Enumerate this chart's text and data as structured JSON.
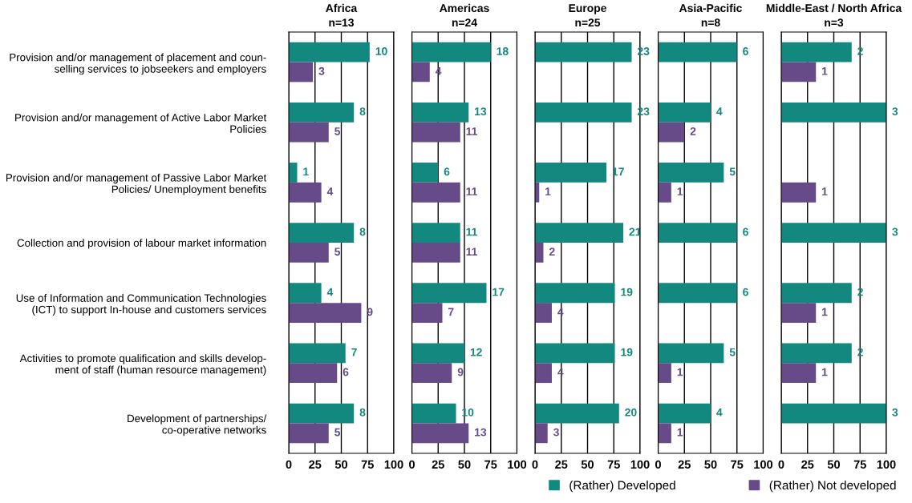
{
  "chart_data": [
    {
      "type": "bar",
      "orientation": "horizontal",
      "title": "Africa",
      "subtitle": "n=13",
      "categories": [
        "Provision and/or management of placement and coun-\nselling services to jobseekers and employers",
        "Provision and/or management of Active Labor Market\nPolicies",
        "Provision and/or management of Passive Labor Market\nPolicies/ Unemployment benefits",
        "Collection and provision of labour market information",
        "Use of Information and Communication Technologies\n(ICT) to support In-house and customers services",
        "Activities to promote qualification and skills develop-\nment of staff (human resource management)",
        "Development of partnerships/\nco-operative networks"
      ],
      "xlim": [
        0,
        100
      ],
      "xticks": [
        0,
        25,
        50,
        75,
        100
      ],
      "grid": "x",
      "series": [
        {
          "color": "#13887f",
          "values": [
            77,
            62,
            8,
            62,
            31,
            54,
            62
          ]
        },
        {
          "color": "#674a88",
          "values": [
            23,
            38,
            31,
            38,
            69,
            46,
            38
          ]
        }
      ],
      "annotations": [
        {
          "text": "10",
          "x": 77,
          "y": "Provision and/or management of placement and coun-\nselling services to jobseekers and employers"
        },
        {
          "text": "3",
          "x": 23,
          "y": "Provision and/or management of placement and coun-\nselling services to jobseekers and employers"
        },
        {
          "text": "8",
          "x": 62,
          "y": "Provision and/or management of Active Labor Market\nPolicies"
        },
        {
          "text": "5",
          "x": 38,
          "y": "Provision and/or management of Active Labor Market\nPolicies"
        },
        {
          "text": "1",
          "x": 8,
          "y": "Provision and/or management of Passive Labor Market\nPolicies/ Unemployment benefits"
        },
        {
          "text": "4",
          "x": 31,
          "y": "Provision and/or management of Passive Labor Market\nPolicies/ Unemployment benefits"
        },
        {
          "text": "8",
          "x": 62,
          "y": "Collection and provision of labour market information"
        },
        {
          "text": "5",
          "x": 38,
          "y": "Collection and provision of labour market information"
        },
        {
          "text": "4",
          "x": 31,
          "y": "Use of Information and Communication Technologies\n(ICT) to support In-house and customers services"
        },
        {
          "text": "9",
          "x": 69,
          "y": "Use of Information and Communication Technologies\n(ICT) to support In-house and customers services"
        },
        {
          "text": "7",
          "x": 54,
          "y": "Activities to promote qualification and skills develop-\nment of staff (human resource management)"
        },
        {
          "text": "6",
          "x": 46,
          "y": "Activities to promote qualification and skills develop-\nment of staff (human resource management)"
        },
        {
          "text": "8",
          "x": 62,
          "y": "Development of partnerships/\nco-operative networks"
        },
        {
          "text": "5",
          "x": 38,
          "y": "Development of partnerships/\nco-operative networks"
        }
      ]
    },
    {
      "type": "bar",
      "orientation": "horizontal",
      "title": "Americas",
      "subtitle": "n=24",
      "categories": [
        "Provision and/or management of placement and coun-\nselling services to jobseekers and employers",
        "Provision and/or management of Active Labor Market\nPolicies",
        "Provision and/or management of Passive Labor Market\nPolicies/ Unemployment benefits",
        "Collection and provision of labour market information",
        "Use of Information and Communication Technologies\n(ICT) to support In-house and customers services",
        "Activities to promote qualification and skills develop-\nment of staff (human resource management)",
        "Development of partnerships/\nco-operative networks"
      ],
      "xlim": [
        0,
        100
      ],
      "xticks": [
        0,
        25,
        50,
        75,
        100
      ],
      "grid": "x",
      "tick_labels": "x",
      "series": [
        {
          "color": "#13887f",
          "values": [
            75,
            54,
            25,
            46,
            71,
            50,
            42
          ]
        },
        {
          "color": "#674a88",
          "values": [
            17,
            46,
            46,
            46,
            29,
            38,
            54
          ]
        }
      ],
      "annotations": [
        {
          "text": "18",
          "x": 75,
          "y": "Provision and/or management of placement and coun-\nselling services to jobseekers and employers"
        },
        {
          "text": "4",
          "x": 17,
          "y": "Provision and/or management of placement and coun-\nselling services to jobseekers and employers"
        },
        {
          "text": "13",
          "x": 54,
          "y": "Provision and/or management of Active Labor Market\nPolicies"
        },
        {
          "text": "11",
          "x": 46,
          "y": "Provision and/or management of Active Labor Market\nPolicies"
        },
        {
          "text": "6",
          "x": 25,
          "y": "Provision and/or management of Passive Labor Market\nPolicies/ Unemployment benefits"
        },
        {
          "text": "11",
          "x": 46,
          "y": "Provision and/or management of Passive Labor Market\nPolicies/ Unemployment benefits"
        },
        {
          "text": "11",
          "x": 46,
          "y": "Collection and provision of labour market information"
        },
        {
          "text": "11",
          "x": 46,
          "y": "Collection and provision of labour market information"
        },
        {
          "text": "17",
          "x": 71,
          "y": "Use of Information and Communication Technologies\n(ICT) to support In-house and customers services"
        },
        {
          "text": "7",
          "x": 29,
          "y": "Use of Information and Communication Technologies\n(ICT) to support In-house and customers services"
        },
        {
          "text": "12",
          "x": 50,
          "y": "Activities to promote qualification and skills develop-\nment of staff (human resource management)"
        },
        {
          "text": "9",
          "x": 38,
          "y": "Activities to promote qualification and skills develop-\nment of staff (human resource management)"
        },
        {
          "text": "10",
          "x": 42,
          "y": "Development of partnerships/\nco-operative networks"
        },
        {
          "text": "13",
          "x": 54,
          "y": "Development of partnerships/\nco-operative networks"
        }
      ]
    },
    {
      "type": "bar",
      "orientation": "horizontal",
      "title": "Europe",
      "subtitle": "n=25",
      "categories": [
        "Provision and/or management of placement and coun-\nselling services to jobseekers and employers",
        "Provision and/or management of Active Labor Market\nPolicies",
        "Provision and/or management of Passive Labor Market\nPolicies/ Unemployment benefits",
        "Collection and provision of labour market information",
        "Use of Information and Communication Technologies\n(ICT) to support In-house and customers services",
        "Activities to promote qualification and skills develop-\nment of staff (human resource management)",
        "Development of partnerships/\nco-operative networks"
      ],
      "xlim": [
        0,
        100
      ],
      "xticks": [
        0,
        25,
        50,
        75,
        100
      ],
      "grid": "x",
      "tick_labels": "x",
      "series": [
        {
          "color": "#13887f",
          "values": [
            92,
            92,
            68,
            84,
            76,
            76,
            80
          ]
        },
        {
          "color": "#674a88",
          "values": [
            null,
            null,
            4,
            8,
            16,
            16,
            12
          ]
        }
      ],
      "annotations": [
        {
          "text": "23",
          "x": 92,
          "y": "Provision and/or management of placement and coun-\nselling services to jobseekers and employers"
        },
        {
          "text": "23",
          "x": 92,
          "y": "Provision and/or management of Active Labor Market\nPolicies"
        },
        {
          "text": "17",
          "x": 68,
          "y": "Provision and/or management of Passive Labor Market\nPolicies/ Unemployment benefits"
        },
        {
          "text": "1",
          "x": 4,
          "y": "Provision and/or management of Passive Labor Market\nPolicies/ Unemployment benefits"
        },
        {
          "text": "21",
          "x": 84,
          "y": "Collection and provision of labour market information"
        },
        {
          "text": "2",
          "x": 8,
          "y": "Collection and provision of labour market information"
        },
        {
          "text": "19",
          "x": 76,
          "y": "Use of Information and Communication Technologies\n(ICT) to support In-house and customers services"
        },
        {
          "text": "4",
          "x": 16,
          "y": "Use of Information and Communication Technologies\n(ICT) to support In-house and customers services"
        },
        {
          "text": "19",
          "x": 76,
          "y": "Activities to promote qualification and skills develop-\nment of staff (human resource management)"
        },
        {
          "text": "4",
          "x": 16,
          "y": "Activities to promote qualification and skills develop-\nment of staff (human resource management)"
        },
        {
          "text": "20",
          "x": 80,
          "y": "Development of partnerships/\nco-operative networks"
        },
        {
          "text": "3",
          "x": 12,
          "y": "Development of partnerships/\nco-operative networks"
        }
      ]
    },
    {
      "type": "bar",
      "orientation": "horizontal",
      "title": "Asia-Pacific",
      "subtitle": "n=8",
      "categories": [
        "Provision and/or management of placement and coun-\nselling services to jobseekers and employers",
        "Provision and/or management of Active Labor Market\nPolicies",
        "Provision and/or management of Passive Labor Market\nPolicies/ Unemployment benefits",
        "Collection and provision of labour market information",
        "Use of Information and Communication Technologies\n(ICT) to support In-house and customers services",
        "Activities to promote qualification and skills develop-\nment of staff (human resource management)",
        "Development of partnerships/\nco-operative networks"
      ],
      "xlim": [
        0,
        100
      ],
      "xticks": [
        0,
        25,
        50,
        75,
        100
      ],
      "grid": "x",
      "tick_labels": "x",
      "series": [
        {
          "color": "#13887f",
          "values": [
            75,
            50,
            62.5,
            75,
            75,
            62.5,
            50
          ]
        },
        {
          "color": "#674a88",
          "values": [
            null,
            25,
            12.5,
            null,
            null,
            12.5,
            12.5
          ]
        }
      ],
      "annotations": [
        {
          "text": "6",
          "x": 75,
          "y": "Provision and/or management of placement and coun-\nselling services to jobseekers and employers"
        },
        {
          "text": "4",
          "x": 50,
          "y": "Provision and/or management of Active Labor Market\nPolicies"
        },
        {
          "text": "2",
          "x": 25,
          "y": "Provision and/or management of Active Labor Market\nPolicies"
        },
        {
          "text": "5",
          "x": 62.5,
          "y": "Provision and/or management of Passive Labor Market\nPolicies/ Unemployment benefits"
        },
        {
          "text": "1",
          "x": 12.5,
          "y": "Provision and/or management of Passive Labor Market\nPolicies/ Unemployment benefits"
        },
        {
          "text": "6",
          "x": 75,
          "y": "Collection and provision of labour market information"
        },
        {
          "text": "6",
          "x": 75,
          "y": "Use of Information and Communication Technologies\n(ICT) to support In-house and customers services"
        },
        {
          "text": "5",
          "x": 62.5,
          "y": "Activities to promote qualification and skills develop-\nment of staff (human resource management)"
        },
        {
          "text": "1",
          "x": 12.5,
          "y": "Activities to promote qualification and skills develop-\nment of staff (human resource management)"
        },
        {
          "text": "4",
          "x": 50,
          "y": "Development of partnerships/\nco-operative networks"
        },
        {
          "text": "1",
          "x": 12.5,
          "y": "Development of partnerships/\nco-operative networks"
        }
      ]
    },
    {
      "type": "bar",
      "orientation": "horizontal",
      "title": "Middle-East / North Africa",
      "subtitle": "n=3",
      "categories": [
        "Provision and/or management of placement and coun-\nselling services to jobseekers and employers",
        "Provision and/or management of Active Labor Market\nPolicies",
        "Provision and/or management of Passive Labor Market\nPolicies/ Unemployment benefits",
        "Collection and provision of labour market information",
        "Use of Information and Communication Technologies\n(ICT) to support In-house and customers services",
        "Activities to promote qualification and skills develop-\nment of staff (human resource management)",
        "Development of partnerships/\nco-operative networks"
      ],
      "xlim": [
        0,
        100
      ],
      "xticks": [
        0,
        25,
        50,
        75,
        100
      ],
      "grid": "x",
      "tick_labels": "x",
      "legend": "bottom",
      "series": [
        {
          "name": "(Rather) Developed",
          "color": "#13887f",
          "values": [
            67,
            100,
            null,
            100,
            67,
            67,
            100
          ]
        },
        {
          "name": "(Rather) Not developed",
          "color": "#674a88",
          "values": [
            33,
            null,
            33,
            null,
            33,
            33,
            null
          ]
        }
      ],
      "annotations": [
        {
          "text": "2",
          "x": 67,
          "y": "Provision and/or management of placement and coun-\nselling services to jobseekers and employers"
        },
        {
          "text": "1",
          "x": 33,
          "y": "Provision and/or management of placement and coun-\nselling services to jobseekers and employers"
        },
        {
          "text": "3",
          "x": 100,
          "y": "Provision and/or management of Active Labor Market\nPolicies"
        },
        {
          "text": "1",
          "x": 33,
          "y": "Provision and/or management of Passive Labor Market\nPolicies/ Unemployment benefits"
        },
        {
          "text": "3",
          "x": 100,
          "y": "Collection and provision of labour market information"
        },
        {
          "text": "2",
          "x": 67,
          "y": "Use of Information and Communication Technologies\n(ICT) to support In-house and customers services"
        },
        {
          "text": "1",
          "x": 33,
          "y": "Use of Information and Communication Technologies\n(ICT) to support In-house and customers services"
        },
        {
          "text": "2",
          "x": 67,
          "y": "Activities to promote qualification and skills develop-\nment of staff (human resource management)"
        },
        {
          "text": "1",
          "x": 33,
          "y": "Activities to promote qualification and skills develop-\nment of staff (human resource management)"
        },
        {
          "text": "3",
          "x": 100,
          "y": "Development of partnerships/\nco-operative networks"
        }
      ]
    }
  ]
}
